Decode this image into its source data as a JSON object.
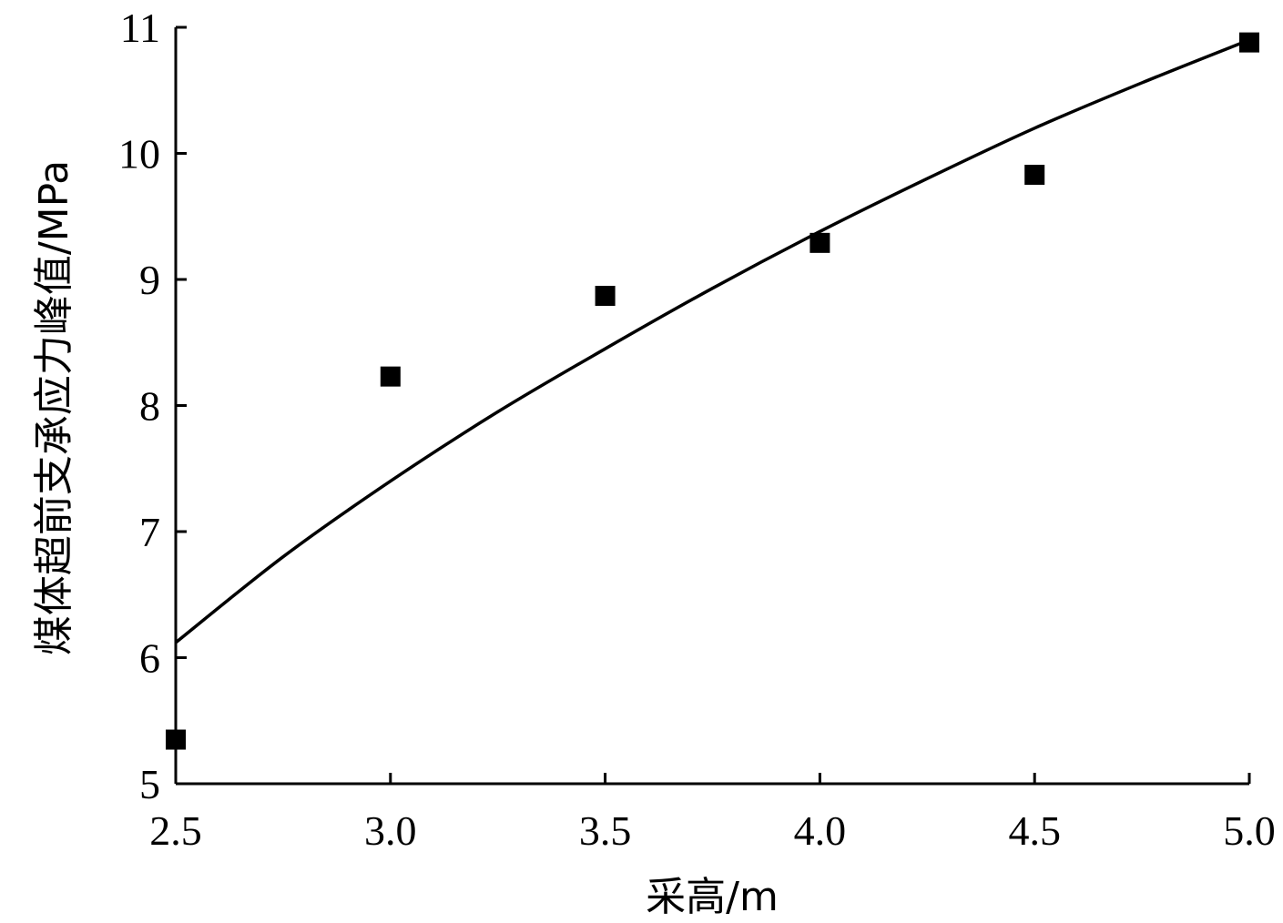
{
  "chart_data": {
    "type": "scatter",
    "xlabel": "采高/m",
    "ylabel": "煤体超前支承应力峰值/MPa",
    "xlim": [
      2.5,
      5.0
    ],
    "ylim": [
      5,
      11
    ],
    "xticks": [
      "2.5",
      "3.0",
      "3.5",
      "4.0",
      "4.5",
      "5.0"
    ],
    "yticks": [
      "5",
      "6",
      "7",
      "8",
      "9",
      "10",
      "11"
    ],
    "grid": false,
    "legend": "none",
    "series": [
      {
        "type": "scatter",
        "marker": "square",
        "x": [
          2.5,
          3.0,
          3.5,
          4.0,
          4.5,
          5.0
        ],
        "y": [
          5.35,
          8.23,
          8.87,
          9.29,
          9.83,
          10.88
        ]
      },
      {
        "type": "line",
        "x": [
          2.5,
          2.75,
          3.0,
          3.25,
          3.5,
          3.75,
          4.0,
          4.25,
          4.5,
          4.75,
          5.0
        ],
        "y": [
          6.12,
          6.8,
          7.4,
          7.95,
          8.45,
          8.93,
          9.38,
          9.8,
          10.2,
          10.56,
          10.9
        ]
      }
    ]
  }
}
